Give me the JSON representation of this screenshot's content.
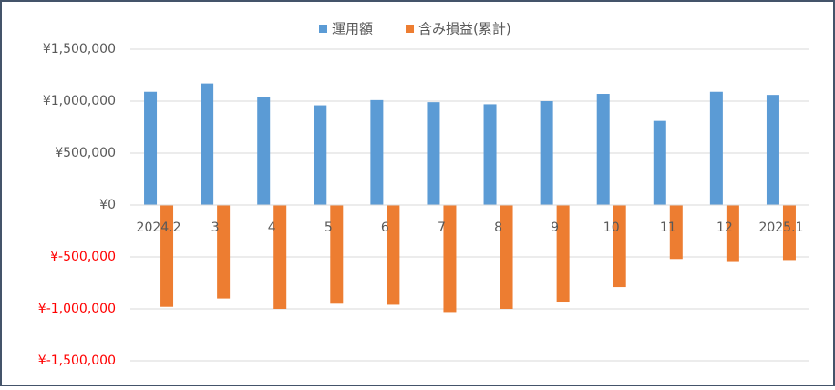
{
  "chart_data": {
    "type": "bar",
    "categories": [
      "2024.2",
      "3",
      "4",
      "5",
      "6",
      "7",
      "8",
      "9",
      "10",
      "11",
      "12",
      "2025.1"
    ],
    "series": [
      {
        "name": "運用額",
        "color": "#5b9bd5",
        "values": [
          1090000,
          1170000,
          1040000,
          960000,
          1010000,
          990000,
          970000,
          1000000,
          1070000,
          810000,
          1090000,
          1060000
        ]
      },
      {
        "name": "含み損益(累計)",
        "color": "#ed7d31",
        "values": [
          -980000,
          -900000,
          -1000000,
          -950000,
          -960000,
          -1030000,
          -1000000,
          -930000,
          -790000,
          -520000,
          -540000,
          -530000
        ]
      }
    ],
    "ylim": [
      -1500000,
      1500000
    ],
    "yticks": [
      {
        "value": -1500000,
        "label": "¥-1,500,000"
      },
      {
        "value": -1000000,
        "label": "¥-1,000,000"
      },
      {
        "value": -500000,
        "label": "¥-500,000"
      },
      {
        "value": 0,
        "label": "¥0"
      },
      {
        "value": 500000,
        "label": "¥500,000"
      },
      {
        "value": 1000000,
        "label": "¥1,000,000"
      },
      {
        "value": 1500000,
        "label": "¥1,500,000"
      }
    ],
    "negative_tick_color": "#ff0000",
    "grid": true,
    "legend": "top"
  }
}
